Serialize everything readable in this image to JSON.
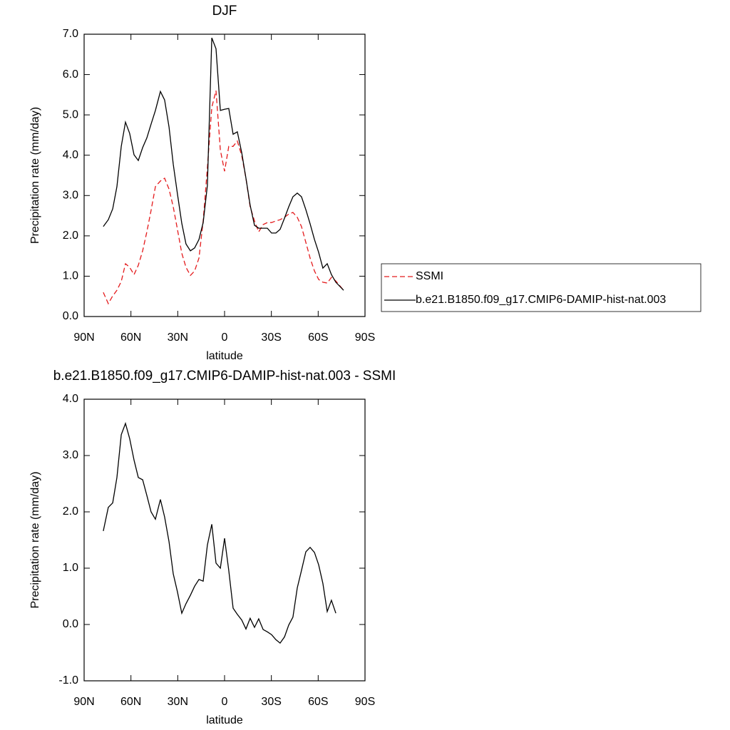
{
  "chart_data": [
    {
      "type": "line",
      "title": "DJF",
      "xlabel": "latitude",
      "ylabel": "Precipitation rate (mm/day)",
      "x": [
        77.7,
        74.5,
        71.7,
        69.0,
        66.2,
        63.5,
        60.8,
        58.0,
        55.3,
        52.5,
        49.8,
        47.1,
        44.3,
        41.1,
        38.4,
        35.6,
        32.9,
        30.2,
        27.4,
        24.7,
        21.9,
        19.2,
        16.4,
        13.7,
        11.0,
        8.2,
        5.5,
        2.7,
        0.0,
        -2.7,
        -5.5,
        -8.2,
        -11.0,
        -13.7,
        -16.4,
        -19.2,
        -21.9,
        -24.7,
        -27.4,
        -30.1,
        -32.9,
        -35.6,
        -38.4,
        -41.1,
        -43.8,
        -46.6,
        -49.3,
        -52.1,
        -54.8,
        -57.6,
        -60.3,
        -63.0,
        -65.8,
        -68.5,
        -71.3,
        -76.3
      ],
      "series": [
        {
          "name": "SSMI",
          "color": "#e41a1c",
          "dashed": true,
          "values": [
            0.6,
            0.32,
            0.51,
            0.65,
            0.87,
            1.31,
            1.22,
            1.04,
            1.27,
            1.63,
            2.1,
            2.63,
            3.22,
            3.36,
            3.43,
            3.16,
            2.72,
            2.16,
            1.57,
            1.22,
            1.02,
            1.13,
            1.45,
            2.37,
            3.69,
            5.19,
            5.6,
            4.13,
            3.6,
            4.22,
            4.22,
            4.35,
            3.99,
            3.43,
            2.72,
            2.37,
            2.1,
            2.28,
            2.33,
            2.33,
            2.37,
            2.4,
            2.46,
            2.54,
            2.58,
            2.46,
            2.23,
            1.84,
            1.45,
            1.13,
            0.92,
            0.85,
            0.83,
            0.97,
            0.88,
            0.65
          ]
        },
        {
          "name": "b.e21.B1850.f09_g17.CMIP6-DAMIP-hist-nat.003",
          "color": "#000000",
          "dashed": false,
          "values": [
            2.23,
            2.4,
            2.67,
            3.22,
            4.22,
            4.82,
            4.54,
            4.01,
            3.87,
            4.19,
            4.43,
            4.77,
            5.11,
            5.58,
            5.37,
            4.7,
            3.78,
            3.04,
            2.31,
            1.8,
            1.63,
            1.7,
            1.91,
            2.33,
            3.25,
            6.91,
            6.64,
            5.11,
            5.14,
            5.16,
            4.52,
            4.58,
            4.06,
            3.43,
            2.76,
            2.26,
            2.19,
            2.19,
            2.19,
            2.07,
            2.07,
            2.16,
            2.44,
            2.72,
            2.97,
            3.06,
            2.97,
            2.65,
            2.3,
            1.91,
            1.59,
            1.2,
            1.31,
            1.04,
            0.85,
            0.65
          ]
        }
      ],
      "xlim": [
        90,
        -90
      ],
      "xticks": [
        {
          "value": 90,
          "label": "90N"
        },
        {
          "value": 60,
          "label": "60N"
        },
        {
          "value": 30,
          "label": "30N"
        },
        0,
        {
          "value": -30,
          "label": "30S"
        },
        {
          "value": -60,
          "label": "60S"
        },
        {
          "value": -90,
          "label": "90S"
        }
      ],
      "ylim": [
        0,
        7
      ],
      "yticks": [
        {
          "value": 0,
          "label": "0.0"
        },
        {
          "value": 1,
          "label": "1.0"
        },
        {
          "value": 2,
          "label": "2.0"
        },
        {
          "value": 3,
          "label": "3.0"
        },
        {
          "value": 4,
          "label": "4.0"
        },
        {
          "value": 5,
          "label": "5.0"
        },
        {
          "value": 6,
          "label": "6.0"
        },
        {
          "value": 7,
          "label": "7.0"
        }
      ],
      "legend": "outside right"
    },
    {
      "type": "line",
      "title": "b.e21.B1850.f09_g17.CMIP6-DAMIP-hist-nat.003 - SSMI",
      "xlabel": "latitude",
      "ylabel": "Precipitation rate (mm/day)",
      "x": [
        77.7,
        74.5,
        71.7,
        69.0,
        66.2,
        63.5,
        60.8,
        58.0,
        55.3,
        52.5,
        49.8,
        47.1,
        44.3,
        41.1,
        38.4,
        35.6,
        32.9,
        30.2,
        27.4,
        24.7,
        21.9,
        19.2,
        16.4,
        13.7,
        11.0,
        8.2,
        5.5,
        2.7,
        0.0,
        -2.7,
        -5.5,
        -8.2,
        -11.0,
        -13.7,
        -16.4,
        -19.2,
        -21.9,
        -24.7,
        -27.4,
        -30.1,
        -32.9,
        -35.6,
        -38.4,
        -41.1,
        -43.8,
        -46.6,
        -49.3,
        -52.1,
        -54.8,
        -57.6,
        -60.3,
        -63.0,
        -65.8,
        -68.5,
        -71.3
      ],
      "series": [
        {
          "color": "#000000",
          "dashed": false,
          "values": [
            1.66,
            2.08,
            2.16,
            2.61,
            3.37,
            3.57,
            3.3,
            2.92,
            2.61,
            2.57,
            2.29,
            2.0,
            1.87,
            2.22,
            1.91,
            1.47,
            0.9,
            0.58,
            0.2,
            0.37,
            0.52,
            0.68,
            0.8,
            0.77,
            1.41,
            1.78,
            1.09,
            1.0,
            1.53,
            0.96,
            0.29,
            0.18,
            0.08,
            -0.08,
            0.11,
            -0.05,
            0.1,
            -0.09,
            -0.13,
            -0.18,
            -0.27,
            -0.33,
            -0.22,
            -0.01,
            0.13,
            0.65,
            0.96,
            1.29,
            1.37,
            1.28,
            1.06,
            0.73,
            0.23,
            0.43,
            0.2
          ]
        }
      ],
      "xlim": [
        90,
        -90
      ],
      "xticks": [
        {
          "value": 90,
          "label": "90N"
        },
        {
          "value": 60,
          "label": "60N"
        },
        {
          "value": 30,
          "label": "30N"
        },
        0,
        {
          "value": -30,
          "label": "30S"
        },
        {
          "value": -60,
          "label": "60S"
        },
        {
          "value": -90,
          "label": "90S"
        }
      ],
      "ylim": [
        -1,
        4
      ],
      "yticks": [
        {
          "value": -1,
          "label": "-1.0"
        },
        {
          "value": 0,
          "label": "0.0"
        },
        {
          "value": 1,
          "label": "1.0"
        },
        {
          "value": 2,
          "label": "2.0"
        },
        {
          "value": 3,
          "label": "3.0"
        },
        {
          "value": 4,
          "label": "4.0"
        }
      ]
    }
  ]
}
